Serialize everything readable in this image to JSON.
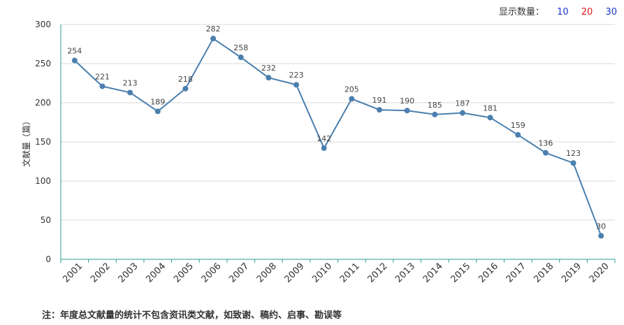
{
  "controls": {
    "label": "显示数量：",
    "options": [
      {
        "label": "10",
        "color": "#1a35c9"
      },
      {
        "label": "20",
        "color": "#e01818"
      },
      {
        "label": "30",
        "color": "#1a35c9"
      }
    ]
  },
  "chart_data": {
    "type": "line",
    "title": "",
    "xlabel": "",
    "ylabel": "文献量（篇）",
    "ylim": [
      0,
      300
    ],
    "yticks": [
      0,
      50,
      100,
      150,
      200,
      250,
      300
    ],
    "categories": [
      "2001",
      "2002",
      "2003",
      "2004",
      "2005",
      "2006",
      "2007",
      "2008",
      "2009",
      "2010",
      "2011",
      "2012",
      "2013",
      "2014",
      "2015",
      "2016",
      "2017",
      "2018",
      "2019",
      "2020"
    ],
    "series": [
      {
        "values": [
          254,
          221,
          213,
          189,
          218,
          282,
          258,
          232,
          223,
          142,
          205,
          191,
          190,
          185,
          187,
          181,
          159,
          136,
          123,
          30
        ],
        "color": "#4a7fae"
      }
    ],
    "grid": true
  },
  "footnote": "注：年度总文献量的统计不包含资讯类文献，如致谢、稿约、启事、勘误等"
}
